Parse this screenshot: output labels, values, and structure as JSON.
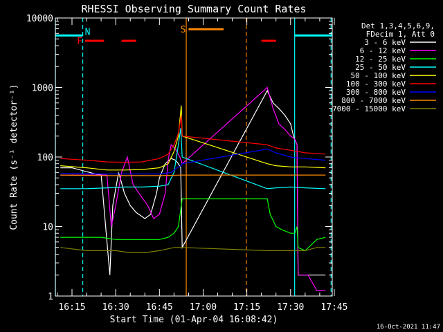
{
  "chart_data": {
    "type": "line",
    "title": "RHESSI Observing Summary Count Rates",
    "xlabel": "Start Time (01-Apr-04 16:08:42)",
    "ylabel": "Count Rate (s⁻¹ detector⁻¹)",
    "y_scale": "log",
    "ylim": [
      1,
      10000
    ],
    "xlim_minutes": [
      -5.7,
      89.3
    ],
    "x_ticks": [
      {
        "label": "16:15",
        "min": 0
      },
      {
        "label": "16:30",
        "min": 15
      },
      {
        "label": "16:45",
        "min": 30
      },
      {
        "label": "17:00",
        "min": 45
      },
      {
        "label": "17:15",
        "min": 60
      },
      {
        "label": "17:30",
        "min": 75
      },
      {
        "label": "17:45",
        "min": 90
      }
    ],
    "y_ticks": [
      {
        "label": "1",
        "value": 1
      },
      {
        "label": "10",
        "value": 10
      },
      {
        "label": "100",
        "value": 100
      },
      {
        "label": "1000",
        "value": 1000
      },
      {
        "label": "10000",
        "value": 10000
      }
    ],
    "legend_header": [
      "Det 1,3,4,5,6,9,",
      "FDecim 1, Att 0"
    ],
    "legend_position": "right",
    "series": [
      {
        "name": "3 - 6 keV",
        "color": "#ffffff",
        "x": [
          -4,
          0,
          8,
          10,
          13,
          14,
          16,
          18,
          20,
          22,
          25,
          27,
          29,
          30,
          32,
          34,
          35.5,
          36.5,
          37.3,
          37.8,
          67,
          69,
          71,
          73,
          75,
          76,
          77.2,
          77.6,
          79,
          81,
          83,
          85,
          87
        ],
        "y": [
          70,
          70,
          57,
          56,
          2,
          20,
          60,
          30,
          20,
          16,
          13,
          15,
          30,
          50,
          80,
          95,
          90,
          80,
          70,
          5,
          900,
          600,
          500,
          400,
          300,
          200,
          150,
          2,
          2,
          2,
          2,
          2,
          2
        ]
      },
      {
        "name": "6 - 12 keV",
        "color": "#ff00ff",
        "x": [
          -4,
          8,
          12,
          13.5,
          15,
          17,
          19,
          21,
          23,
          26,
          28,
          30,
          32,
          33,
          34,
          35.5,
          37,
          37.8,
          67,
          69,
          71,
          73,
          75,
          76.5,
          77.2,
          77.6,
          79,
          81,
          84,
          87
        ],
        "y": [
          55,
          55,
          55,
          10,
          20,
          60,
          100,
          40,
          30,
          20,
          13,
          15,
          30,
          90,
          150,
          130,
          100,
          80,
          1000,
          500,
          300,
          250,
          200,
          180,
          150,
          2,
          2,
          2,
          1.2,
          1.2
        ]
      },
      {
        "name": "12 - 25 keV",
        "color": "#00ff00",
        "x": [
          -4,
          5,
          10,
          15,
          20,
          25,
          30,
          33,
          35,
          36.5,
          37.5,
          37.8,
          67,
          68,
          70,
          72,
          75,
          76.5,
          77.2,
          77.6,
          80,
          84,
          87
        ],
        "y": [
          7,
          7,
          7,
          6.5,
          6.5,
          6.5,
          6.5,
          7,
          8,
          10,
          20,
          25,
          25,
          15,
          10,
          9,
          8,
          8,
          10,
          5,
          4.5,
          6.5,
          7
        ]
      },
      {
        "name": "25 - 50 keV",
        "color": "#00ffff",
        "x": [
          -4,
          5,
          12,
          18,
          24,
          30,
          33,
          35,
          36.5,
          37.3,
          37.8,
          67,
          70,
          75,
          80,
          87
        ],
        "y": [
          35,
          35,
          36,
          37,
          37,
          38,
          40,
          60,
          150,
          260,
          100,
          35,
          36,
          37,
          36,
          35
        ]
      },
      {
        "name": "50 - 100 keV",
        "color": "#ffff00",
        "x": [
          -4,
          5,
          12,
          18,
          24,
          30,
          33,
          35,
          36.5,
          37.5,
          37.8,
          67,
          70,
          75,
          80,
          87
        ],
        "y": [
          75,
          70,
          65,
          65,
          66,
          70,
          80,
          120,
          200,
          550,
          200,
          80,
          75,
          72,
          72,
          70
        ]
      },
      {
        "name": "100 - 300 keV",
        "color": "#ff0000",
        "x": [
          -4,
          5,
          12,
          18,
          24,
          30,
          33,
          35,
          36.5,
          37.5,
          37.8,
          67,
          70,
          75,
          80,
          87
        ],
        "y": [
          95,
          90,
          85,
          84,
          85,
          95,
          110,
          150,
          220,
          400,
          200,
          150,
          135,
          125,
          115,
          110
        ]
      },
      {
        "name": "300 - 800 keV",
        "color": "#0000ff",
        "x": [
          -4,
          10,
          20,
          30,
          34,
          36,
          37.5,
          37.8,
          67,
          70,
          75,
          80,
          87
        ],
        "y": [
          58,
          57,
          57,
          57,
          60,
          70,
          75,
          80,
          130,
          115,
          100,
          95,
          90
        ]
      },
      {
        "name": "800 - 7000 keV",
        "color": "#ff8800",
        "x": [
          -4,
          10,
          20,
          30,
          37.8,
          67,
          75,
          87
        ],
        "y": [
          55,
          54,
          54,
          54,
          55,
          55,
          55,
          55
        ]
      },
      {
        "name": "7000 - 15000 keV",
        "color": "#808000",
        "x": [
          -4,
          5,
          10,
          15,
          20,
          25,
          30,
          35,
          37.8,
          67,
          70,
          75,
          80,
          84,
          87
        ],
        "y": [
          5,
          4.5,
          4.5,
          4.5,
          4.2,
          4.2,
          4.5,
          5,
          5,
          4.5,
          4.5,
          4.5,
          4.5,
          5,
          5
        ]
      }
    ],
    "flags": [
      {
        "label": "N",
        "color": "#00ffff",
        "y": 5600,
        "segments": [
          [
            -5.7,
            3.7
          ],
          [
            76.5,
            89.3
          ]
        ]
      },
      {
        "label": "F",
        "color": "#ff0000",
        "y": 4700,
        "segments": [
          [
            4.5,
            11
          ],
          [
            17,
            22
          ],
          [
            65,
            70
          ]
        ]
      },
      {
        "label": "S",
        "color": "#ff8800",
        "y": 6900,
        "segments": [
          [
            40,
            52
          ]
        ]
      }
    ],
    "vlines": [
      {
        "color": "#00ffff",
        "min": -5.7,
        "style": "solid"
      },
      {
        "color": "#00ffff",
        "min": 3.7,
        "style": "dashed"
      },
      {
        "color": "#ff8800",
        "min": 39.2,
        "style": "solid"
      },
      {
        "color": "#ff8800",
        "min": 59.8,
        "style": "dashed"
      },
      {
        "color": "#00ffff",
        "min": 76.4,
        "style": "solid"
      },
      {
        "color": "#00ffff",
        "min": 88.9,
        "style": "dashed"
      }
    ]
  },
  "footer": {
    "date_stamp": "16-Oct-2021 11:47"
  }
}
